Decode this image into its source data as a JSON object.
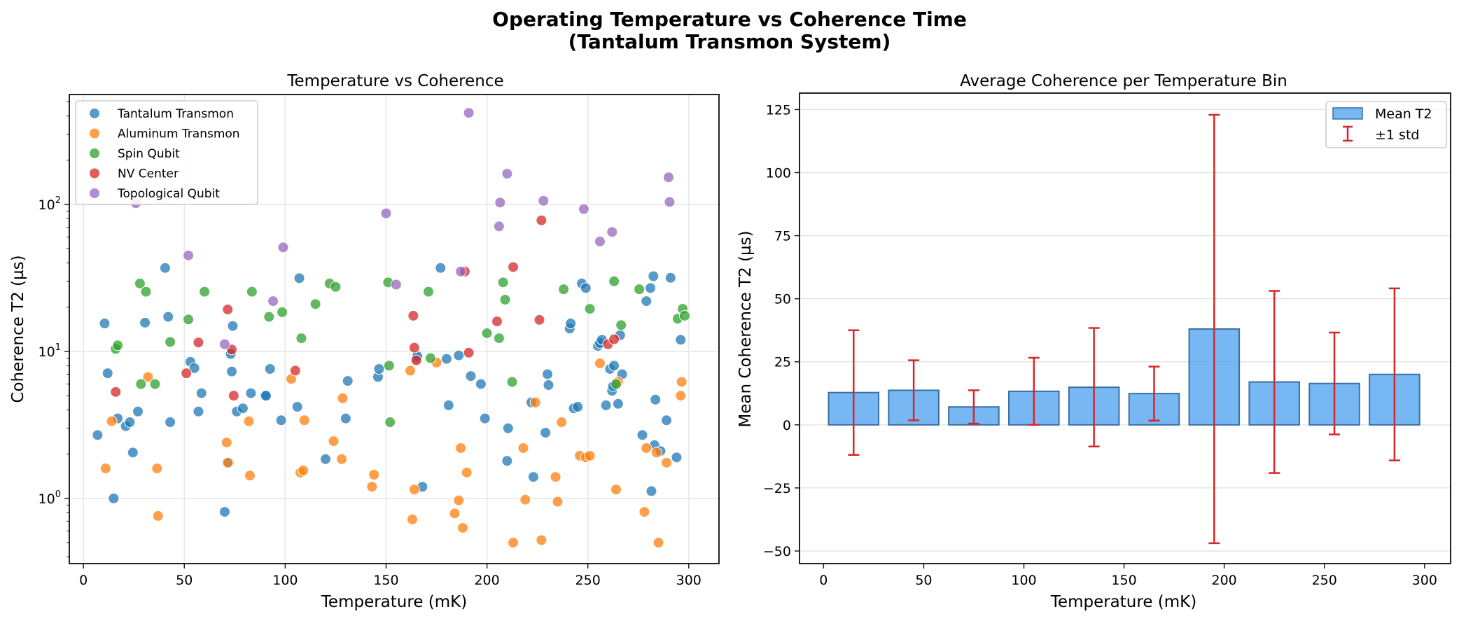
{
  "suptitle": {
    "line1": "Operating Temperature vs Coherence Time",
    "line2": "(Tantalum Transmon System)"
  },
  "chart_data": [
    {
      "type": "scatter",
      "title": "Temperature vs Coherence",
      "xlabel": "Temperature (mK)",
      "ylabel": "Coherence T2 (µs)",
      "xscale": "linear",
      "yscale": "log",
      "xlim": [
        -7,
        315
      ],
      "ylim": [
        0.36,
        560
      ],
      "xticks": [
        0,
        50,
        100,
        150,
        200,
        250,
        300
      ],
      "xtick_labels": [
        "0",
        "50",
        "100",
        "150",
        "200",
        "250",
        "300"
      ],
      "yticks": [
        1,
        10,
        100
      ],
      "ytick_labels": [
        "10",
        "10",
        "10"
      ],
      "ytick_exponents": [
        "0",
        "1",
        "2"
      ],
      "grid": true,
      "legend_position": "upper-left",
      "series": [
        {
          "name": "Tantalum Transmon",
          "color": "#1f77b4",
          "points": [
            [
              7,
              2.7
            ],
            [
              10.5,
              15.5
            ],
            [
              12,
              7.1
            ],
            [
              15,
              1.0
            ],
            [
              17,
              3.5
            ],
            [
              21,
              3.1
            ],
            [
              23,
              3.3
            ],
            [
              24.5,
              2.05
            ],
            [
              27,
              3.9
            ],
            [
              30.5,
              15.7
            ],
            [
              40.5,
              37
            ],
            [
              42,
              17.2
            ],
            [
              43,
              3.3
            ],
            [
              53,
              8.5
            ],
            [
              55,
              7.7
            ],
            [
              57,
              3.9
            ],
            [
              58.5,
              5.2
            ],
            [
              70,
              0.81
            ],
            [
              72,
              1.75
            ],
            [
              73,
              9.6
            ],
            [
              73.5,
              7.3
            ],
            [
              74,
              14.9
            ],
            [
              76,
              3.9
            ],
            [
              79,
              4.1
            ],
            [
              83,
              5.2
            ],
            [
              90,
              5.0
            ],
            [
              90.5,
              5.0
            ],
            [
              92.5,
              7.6
            ],
            [
              98,
              3.4
            ],
            [
              106,
              4.2
            ],
            [
              107,
              31.5
            ],
            [
              120,
              1.85
            ],
            [
              130,
              3.5
            ],
            [
              131,
              6.3
            ],
            [
              146,
              6.7
            ],
            [
              146.5,
              7.6
            ],
            [
              165,
              9.0
            ],
            [
              165.5,
              9.3
            ],
            [
              168,
              1.2
            ],
            [
              177,
              37
            ],
            [
              180,
              8.9
            ],
            [
              181,
              4.3
            ],
            [
              186,
              9.4
            ],
            [
              192,
              6.8
            ],
            [
              197,
              6.0
            ],
            [
              199,
              3.5
            ],
            [
              210,
              1.8
            ],
            [
              210.5,
              3.0
            ],
            [
              222,
              4.5
            ],
            [
              223,
              1.4
            ],
            [
              229,
              2.8
            ],
            [
              230,
              7.0
            ],
            [
              230.5,
              5.9
            ],
            [
              241,
              14.3
            ],
            [
              241.5,
              15.5
            ],
            [
              243,
              4.1
            ],
            [
              245,
              4.2
            ],
            [
              247,
              29
            ],
            [
              249,
              27
            ],
            [
              255,
              10.9
            ],
            [
              256,
              11.4
            ],
            [
              257,
              12
            ],
            [
              259,
              4.3
            ],
            [
              261,
              7.6
            ],
            [
              262,
              5.4
            ],
            [
              262.5,
              5.8
            ],
            [
              263,
              8.0
            ],
            [
              265,
              4.4
            ],
            [
              266,
              12.9
            ],
            [
              267,
              7.0
            ],
            [
              277,
              2.7
            ],
            [
              279,
              22
            ],
            [
              281,
              27
            ],
            [
              281.5,
              1.12
            ],
            [
              282.5,
              32.5
            ],
            [
              283,
              2.3
            ],
            [
              283.5,
              4.7
            ],
            [
              286,
              2.1
            ],
            [
              289,
              3.4
            ],
            [
              291,
              31.7
            ],
            [
              294,
              1.9
            ],
            [
              296,
              12
            ]
          ]
        },
        {
          "name": "Aluminum Transmon",
          "color": "#ff7f0e",
          "points": [
            [
              11,
              1.6
            ],
            [
              14,
              3.35
            ],
            [
              32,
              6.7
            ],
            [
              36.5,
              1.6
            ],
            [
              37,
              0.76
            ],
            [
              71,
              2.4
            ],
            [
              71.5,
              1.75
            ],
            [
              82,
              3.35
            ],
            [
              82.5,
              1.43
            ],
            [
              103,
              6.5
            ],
            [
              107.5,
              1.5
            ],
            [
              109,
              1.55
            ],
            [
              109.5,
              3.4
            ],
            [
              124,
              2.45
            ],
            [
              128,
              1.85
            ],
            [
              128.5,
              4.8
            ],
            [
              143,
              1.2
            ],
            [
              144,
              1.45
            ],
            [
              162,
              7.4
            ],
            [
              163,
              0.72
            ],
            [
              164,
              1.15
            ],
            [
              175,
              8.4
            ],
            [
              184,
              0.79
            ],
            [
              186,
              0.97
            ],
            [
              187,
              2.2
            ],
            [
              188,
              0.63
            ],
            [
              190,
              1.5
            ],
            [
              213,
              0.5
            ],
            [
              218,
              2.2
            ],
            [
              219,
              0.98
            ],
            [
              224,
              4.5
            ],
            [
              227,
              0.52
            ],
            [
              234,
              1.4
            ],
            [
              235,
              0.95
            ],
            [
              237,
              3.3
            ],
            [
              246,
              1.95
            ],
            [
              249,
              1.9
            ],
            [
              251,
              1.95
            ],
            [
              256,
              8.3
            ],
            [
              264,
              1.15
            ],
            [
              265,
              6.2
            ],
            [
              278,
              0.81
            ],
            [
              279,
              2.2
            ],
            [
              284,
              2.05
            ],
            [
              285,
              0.5
            ],
            [
              289,
              1.75
            ],
            [
              296,
              5.0
            ],
            [
              296.5,
              6.2
            ]
          ]
        },
        {
          "name": "Spin Qubit",
          "color": "#2ca02c",
          "points": [
            [
              16,
              10.4
            ],
            [
              17,
              11
            ],
            [
              28,
              29
            ],
            [
              28.5,
              6.0
            ],
            [
              31,
              25.5
            ],
            [
              35.5,
              6.0
            ],
            [
              43,
              11.6
            ],
            [
              52,
              16.5
            ],
            [
              60,
              25.5
            ],
            [
              83.5,
              25.5
            ],
            [
              92,
              17.2
            ],
            [
              98.5,
              18.5
            ],
            [
              108,
              12.3
            ],
            [
              115,
              21
            ],
            [
              122,
              29
            ],
            [
              125,
              27.5
            ],
            [
              151,
              29.5
            ],
            [
              151.5,
              8.0
            ],
            [
              152,
              3.3
            ],
            [
              171,
              25.5
            ],
            [
              172,
              9.0
            ],
            [
              200,
              13.3
            ],
            [
              206,
              12.3
            ],
            [
              208,
              29.5
            ],
            [
              209,
              22.5
            ],
            [
              212.5,
              6.2
            ],
            [
              238,
              26.5
            ],
            [
              251,
              19.5
            ],
            [
              263,
              30
            ],
            [
              264,
              6.0
            ],
            [
              266.5,
              15.1
            ],
            [
              275.5,
              26.5
            ],
            [
              294.5,
              16.7
            ],
            [
              297,
              19.5
            ],
            [
              298,
              17.5
            ]
          ]
        },
        {
          "name": "NV Center",
          "color": "#d62728",
          "points": [
            [
              16,
              5.3
            ],
            [
              51,
              7.1
            ],
            [
              57,
              11.5
            ],
            [
              71.5,
              19.3
            ],
            [
              73.5,
              10.3
            ],
            [
              74.5,
              5.0
            ],
            [
              105,
              7.4
            ],
            [
              163.5,
              17.5
            ],
            [
              164,
              10.6
            ],
            [
              165,
              8.7
            ],
            [
              189,
              35
            ],
            [
              191,
              9.8
            ],
            [
              205,
              16.0
            ],
            [
              213,
              37.5
            ],
            [
              226,
              16.4
            ],
            [
              227,
              78
            ],
            [
              260,
              11.2
            ],
            [
              263,
              12.1
            ]
          ]
        },
        {
          "name": "Topological Qubit",
          "color": "#9467bd",
          "points": [
            [
              26,
              102
            ],
            [
              52,
              45
            ],
            [
              70,
              11.2
            ],
            [
              94,
              22
            ],
            [
              99,
              51
            ],
            [
              150,
              87
            ],
            [
              155,
              28.5
            ],
            [
              187,
              35
            ],
            [
              191,
              420
            ],
            [
              206,
              71
            ],
            [
              206.5,
              103
            ],
            [
              210,
              162
            ],
            [
              228,
              106
            ],
            [
              248,
              93
            ],
            [
              256,
              56
            ],
            [
              262,
              65
            ],
            [
              290,
              153
            ],
            [
              290.5,
              104
            ]
          ]
        }
      ]
    },
    {
      "type": "bar",
      "title": "Average Coherence per Temperature Bin",
      "xlabel": "Temperature (mK)",
      "ylabel": "Mean Coherence T2 (µs)",
      "xlim": [
        -12,
        313
      ],
      "ylim": [
        -55,
        131.5
      ],
      "xticks": [
        0,
        50,
        100,
        150,
        200,
        250,
        300
      ],
      "xtick_labels": [
        "0",
        "50",
        "100",
        "150",
        "200",
        "250",
        "300"
      ],
      "yticks": [
        -50,
        -25,
        0,
        25,
        50,
        75,
        100,
        125
      ],
      "ytick_labels": [
        "−50",
        "−25",
        "0",
        "25",
        "50",
        "75",
        "100",
        "125"
      ],
      "grid": true,
      "bin_width": 25,
      "x": [
        15,
        45,
        75,
        105,
        135,
        165,
        195,
        225,
        255,
        285
      ],
      "series": [
        {
          "name": "Mean T2",
          "color": "#4a9ff0",
          "values": [
            12.8,
            13.7,
            7.1,
            13.3,
            14.9,
            12.4,
            38.0,
            17.0,
            16.4,
            20.0
          ]
        }
      ],
      "error_bars": {
        "name": "±1 std",
        "color": "#d62728",
        "values": [
          24.7,
          11.9,
          6.6,
          13.3,
          23.5,
          10.7,
          84.9,
          36.1,
          20.2,
          34.1
        ]
      },
      "legend_position": "upper-right",
      "legend": [
        "Mean T2",
        "±1 std"
      ]
    }
  ]
}
